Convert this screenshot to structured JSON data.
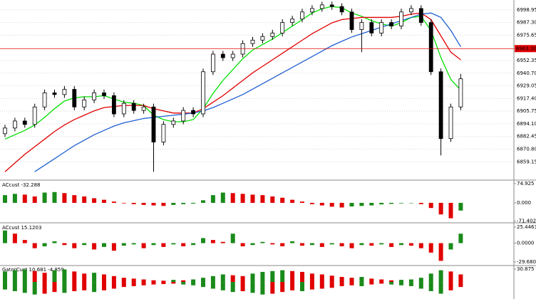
{
  "chart_data": [
    {
      "type": "candlestick",
      "grid": true,
      "ylim": [
        6843.6,
        7006.7
      ],
      "yticks": [
        6998.95,
        {
          "value": 6987.3,
          "label": "6987.30"
        },
        6975.65,
        6952.35,
        {
          "value": 6940.7,
          "label": "6940.70"
        },
        6929.05,
        {
          "value": 6917.4,
          "label": "6917.40"
        },
        6905.75,
        {
          "value": 6894.1,
          "label": "6894.10"
        },
        6882.45,
        {
          "value": 6870.8,
          "label": "6870.80"
        },
        6859.15
      ],
      "price_line": {
        "value": 6963.3,
        "label": "6963.30",
        "color": "#e00000"
      },
      "up_color": "#ffffff",
      "down_color": "#000000",
      "open": [
        6885.0,
        6890.2,
        6896.7,
        6893.5,
        6909.6,
        6922.6,
        6921.0,
        6925.8,
        6909.6,
        6916.1,
        6922.6,
        6920.0,
        6903.2,
        6912.9,
        6906.4,
        6909.6,
        6877.3,
        6893.5,
        6896.7,
        6906.4,
        6903.2,
        6942.0,
        6958.2,
        6954.9,
        6958.2,
        6967.9,
        6971.1,
        6974.4,
        6977.6,
        6987.3,
        6990.5,
        6997.0,
        7000.2,
        7003.5,
        7002.0,
        6997.0,
        6980.8,
        6987.3,
        6977.6,
        6987.3,
        6984.1,
        6997.0,
        7000.2,
        6987.3,
        6942.0,
        6880.5,
        6909.6
      ],
      "high": [
        6893.2,
        6899.7,
        6899.7,
        6912.6,
        6925.6,
        6925.6,
        6928.8,
        6928.8,
        6919.1,
        6925.6,
        6925.6,
        6923.0,
        6915.9,
        6915.9,
        6912.6,
        6912.6,
        6896.5,
        6899.7,
        6909.4,
        6909.4,
        6945.0,
        6961.2,
        6961.2,
        6961.2,
        6970.9,
        6974.1,
        6977.4,
        6980.6,
        6990.3,
        6993.5,
        7000.0,
        7003.2,
        7006.5,
        7006.5,
        7005.0,
        7000.0,
        6990.3,
        6990.3,
        6990.3,
        6990.3,
        7000.0,
        7003.2,
        7003.2,
        6990.3,
        6945.0,
        6912.6,
        6940.0
      ],
      "low": [
        6882.0,
        6887.2,
        6890.5,
        6890.5,
        6906.6,
        6918.0,
        6918.0,
        6906.6,
        6906.6,
        6913.1,
        6917.0,
        6900.2,
        6900.2,
        6903.4,
        6903.4,
        6850.0,
        6874.3,
        6890.5,
        6893.7,
        6900.2,
        6900.2,
        6939.0,
        6951.9,
        6951.9,
        6955.2,
        6964.9,
        6968.1,
        6971.4,
        6974.6,
        6984.3,
        6987.5,
        6994.0,
        6997.2,
        6999.0,
        6994.0,
        6977.8,
        6960.0,
        6974.6,
        6974.6,
        6981.1,
        6981.1,
        6994.0,
        6984.3,
        6939.0,
        6865.0,
        6877.5,
        6906.6
      ],
      "close": [
        6890.2,
        6896.7,
        6893.5,
        6909.6,
        6922.6,
        6921.0,
        6925.8,
        6909.6,
        6916.1,
        6922.6,
        6920.0,
        6903.2,
        6912.9,
        6906.4,
        6909.6,
        6877.3,
        6893.5,
        6896.7,
        6906.4,
        6903.2,
        6942.0,
        6958.2,
        6954.9,
        6958.2,
        6967.9,
        6971.1,
        6974.4,
        6977.6,
        6987.3,
        6990.5,
        6997.0,
        7000.2,
        7003.5,
        7002.0,
        6997.0,
        6980.8,
        6987.3,
        6977.6,
        6987.3,
        6984.1,
        6997.0,
        7000.2,
        6987.3,
        6942.0,
        6880.5,
        6909.6,
        6935.5
      ],
      "moving_averages": [
        {
          "color": "#00e000",
          "values": [
            6880,
            6884,
            6888,
            6893,
            6900,
            6908,
            6915,
            6918,
            6919,
            6919,
            6920,
            6917,
            6914,
            6913,
            6911,
            6902,
            6898,
            6896,
            6896,
            6898,
            6908,
            6922,
            6934,
            6944,
            6954,
            6962,
            6967,
            6972,
            6978,
            6984,
            6990,
            6996,
            7000,
            7002,
            7001,
            6996,
            6993,
            6989,
            6986,
            6984,
            6987,
            6992,
            6993,
            6980,
            6955,
            6935,
            6925
          ]
        },
        {
          "color": "#e00000",
          "values": [
            6850,
            6858,
            6866,
            6873,
            6880,
            6887,
            6893,
            6898,
            6902,
            6906,
            6909,
            6910,
            6911,
            6911,
            6911,
            6908,
            6906,
            6904,
            6904,
            6904,
            6908,
            6914,
            6920,
            6927,
            6934,
            6941,
            6947,
            6953,
            6959,
            6965,
            6971,
            6977,
            6982,
            6987,
            6990,
            6991,
            6992,
            6992,
            6992,
            6992,
            6993,
            6995,
            6996,
            6990,
            6975,
            6960,
            6953
          ]
        },
        {
          "color": "#1e5fd0",
          "values": [
            null,
            null,
            null,
            6850,
            6856,
            6862,
            6868,
            6874,
            6879,
            6884,
            6888,
            6892,
            6895,
            6897,
            6899,
            6900,
            6901,
            6902,
            6903,
            6904,
            6906,
            6909,
            6913,
            6917,
            6921,
            6926,
            6931,
            6936,
            6941,
            6946,
            6951,
            6956,
            6961,
            6966,
            6970,
            6974,
            6977,
            6980,
            6983,
            6986,
            6989,
            6992,
            6995,
            6996,
            6992,
            6980,
            6965
          ]
        }
      ]
    },
    {
      "type": "histogram",
      "title": "ACcust -32.288",
      "up_color": "#1a8a1a",
      "down_color": "#e00000",
      "ylim": [
        -75,
        83
      ],
      "yticks": [
        74.925,
        {
          "value": 0,
          "label": "0.000"
        },
        -71.402
      ],
      "values": [
        30,
        35,
        32,
        25,
        40,
        42,
        38,
        30,
        25,
        18,
        12,
        5,
        -2,
        -5,
        -8,
        -10,
        -12,
        -8,
        -5,
        -3,
        10,
        30,
        40,
        38,
        35,
        32,
        30,
        25,
        20,
        12,
        5,
        -5,
        -10,
        -15,
        -18,
        -14,
        -12,
        -10,
        -6,
        -4,
        -2,
        -1,
        -5,
        -20,
        -45,
        -60,
        -30
      ]
    },
    {
      "type": "histogram",
      "title": "ACcust 15.1203",
      "up_color": "#1a8a1a",
      "down_color": "#e00000",
      "ylim": [
        -34.3,
        29.9
      ],
      "yticks": [
        25.4463,
        {
          "value": 0,
          "label": "0.0000"
        },
        -29.6807
      ],
      "values": [
        20,
        15,
        5,
        -8,
        -5,
        3,
        -3,
        -8,
        -3,
        -10,
        -6,
        -12,
        -4,
        -2,
        -8,
        -3,
        -6,
        -2,
        -5,
        -3,
        8,
        5,
        2,
        15,
        -5,
        -3,
        2,
        -2,
        -5,
        3,
        -4,
        -3,
        -6,
        -2,
        -5,
        -8,
        -3,
        -4,
        -2,
        -6,
        -3,
        -4,
        -8,
        -15,
        -28,
        -10,
        15
      ]
    },
    {
      "type": "gator",
      "title": "GatorCust 10.681 -4.859",
      "up_color": "#1a8a1a",
      "down_color": "#e00000",
      "ylim": [
        -39,
        35.8
      ],
      "yticks": [
        30.875
      ],
      "upper": [
        25,
        28,
        30,
        26,
        22,
        28,
        30,
        25,
        20,
        22,
        18,
        14,
        10,
        8,
        6,
        4,
        3,
        5,
        4,
        6,
        10,
        14,
        18,
        16,
        14,
        20,
        24,
        26,
        28,
        26,
        24,
        20,
        18,
        15,
        12,
        10,
        12,
        8,
        6,
        4,
        5,
        6,
        10,
        20,
        28,
        25,
        18
      ],
      "lower": [
        -18,
        -22,
        -26,
        -30,
        -28,
        -24,
        -26,
        -22,
        -20,
        -24,
        -20,
        -16,
        -12,
        -10,
        -8,
        -6,
        -5,
        -4,
        -6,
        -8,
        -12,
        -16,
        -20,
        -24,
        -22,
        -26,
        -30,
        -28,
        -24,
        -20,
        -22,
        -18,
        -16,
        -14,
        -10,
        -8,
        -10,
        -6,
        -4,
        -6,
        -8,
        -10,
        -16,
        -22,
        -28,
        -20,
        -12
      ]
    }
  ]
}
